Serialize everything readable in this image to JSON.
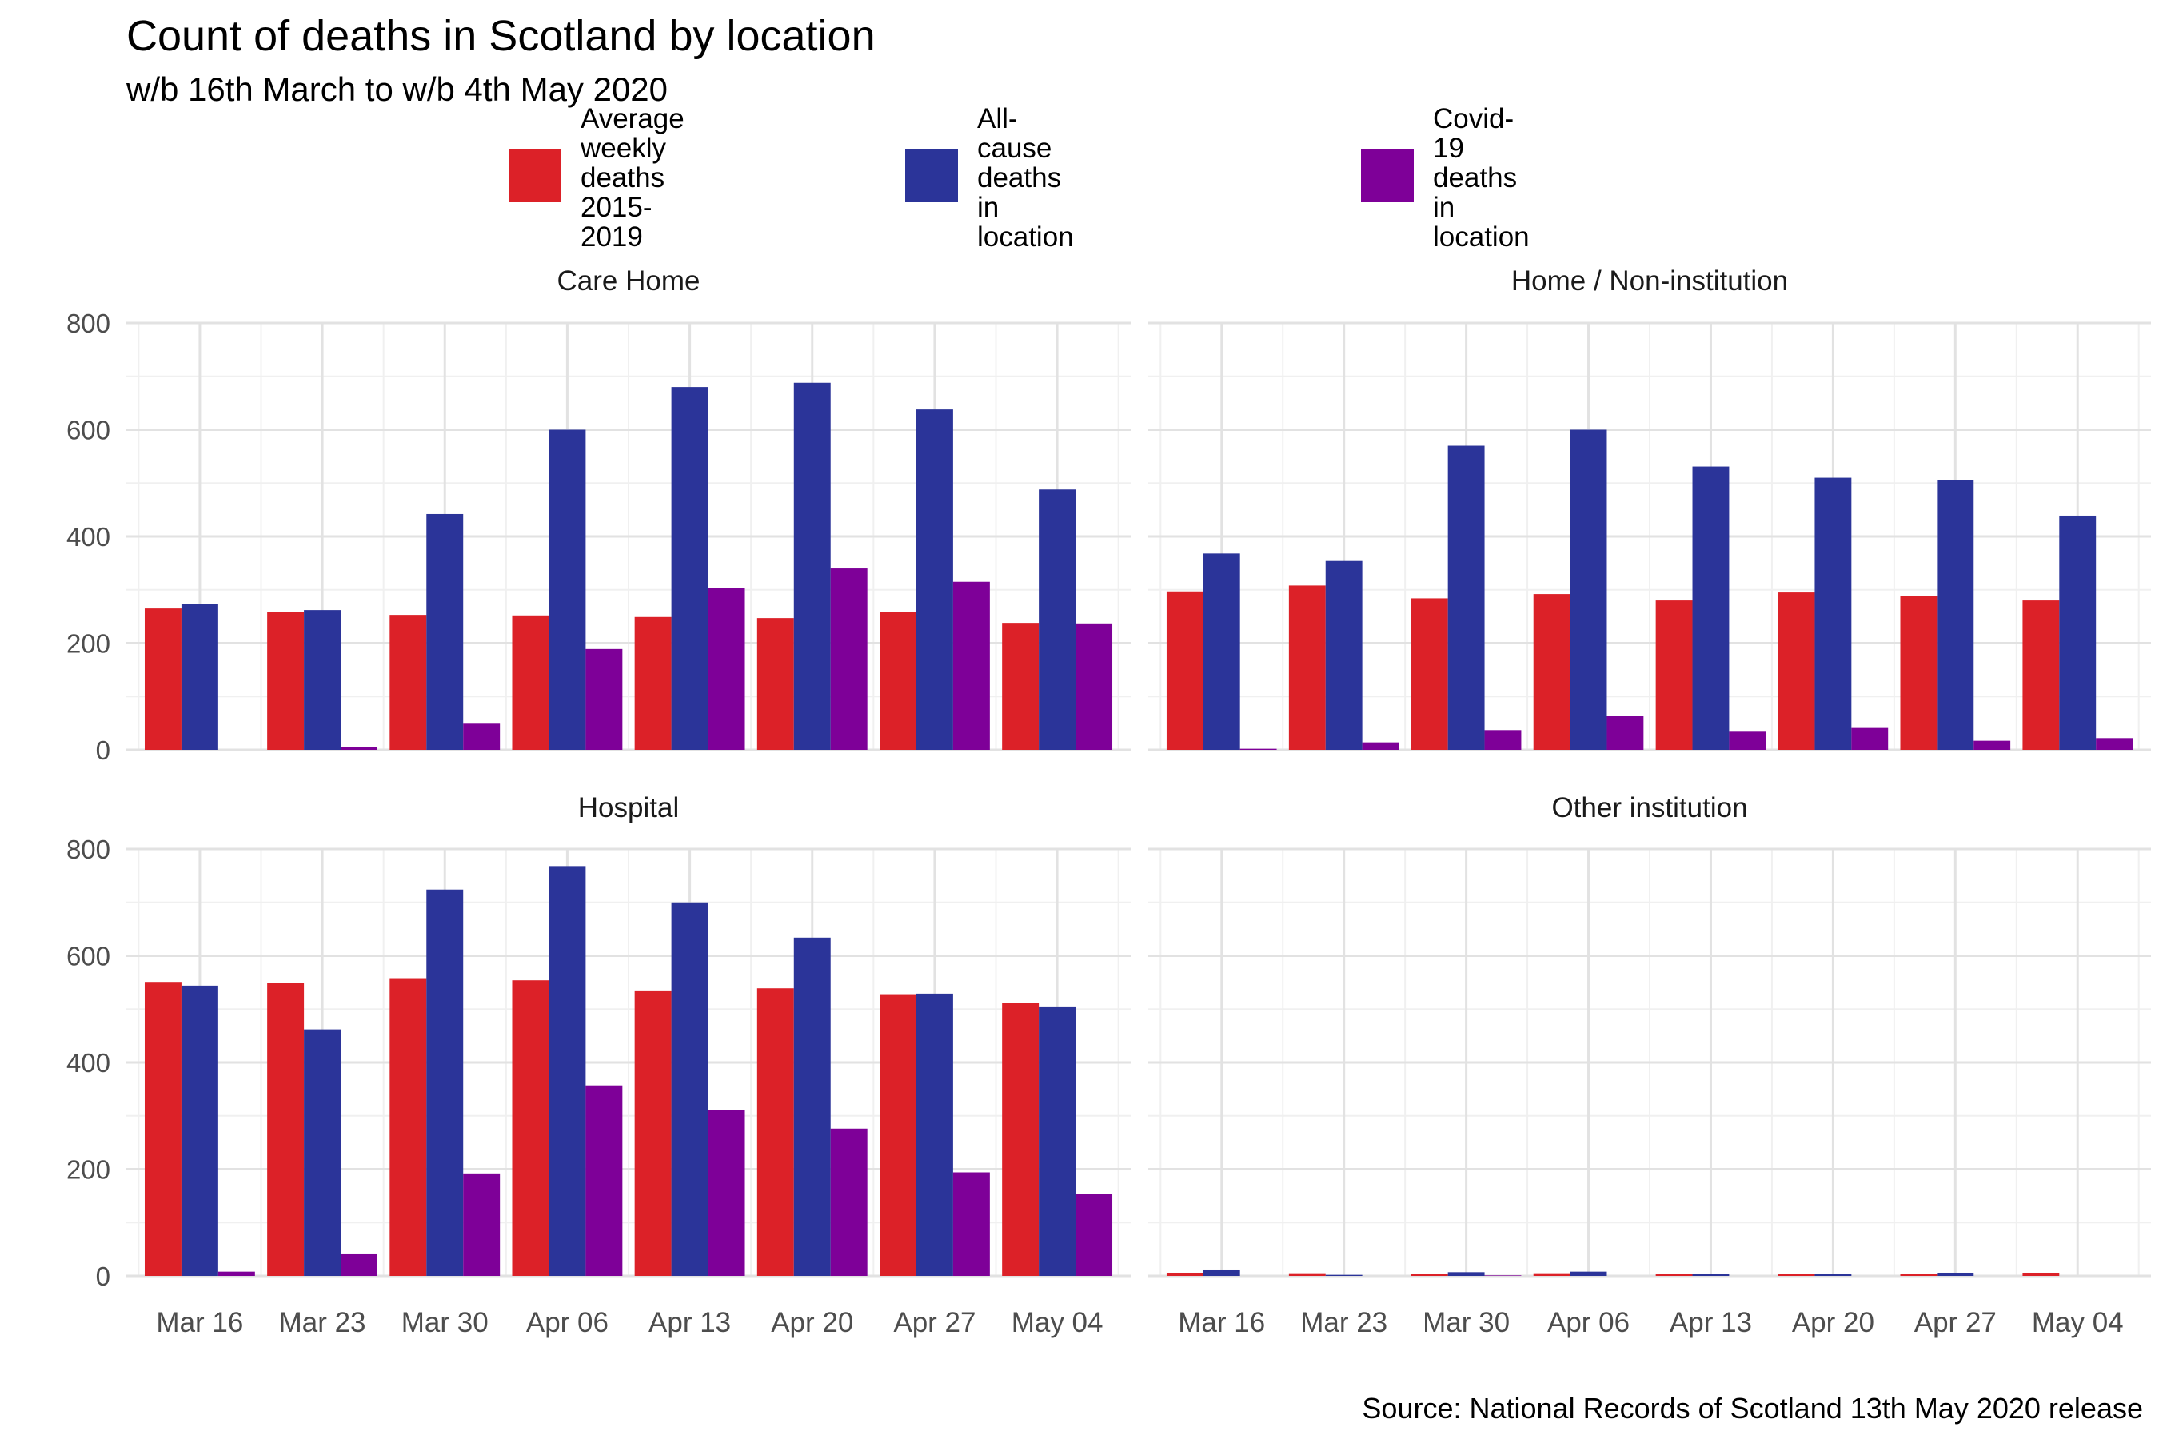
{
  "title": "Count of deaths in Scotland by location",
  "subtitle": "w/b 16th March to w/b 4th May 2020",
  "caption": "Source: National Records of Scotland 13th May 2020 release",
  "legend": [
    {
      "label": "Average weekly deaths\n2015-2019",
      "color": "#DC2128"
    },
    {
      "label": "All-cause deaths in location",
      "color": "#2B3499"
    },
    {
      "label": "Covid-19 deaths in location",
      "color": "#7E0098"
    }
  ],
  "chart_data": {
    "type": "bar",
    "facets": [
      "Care Home",
      "Home / Non-institution",
      "Hospital",
      "Other institution"
    ],
    "categories": [
      "Mar 16",
      "Mar 23",
      "Mar 30",
      "Apr 06",
      "Apr 13",
      "Apr 20",
      "Apr 27",
      "May 04"
    ],
    "ylim": [
      0,
      800
    ],
    "yticks": [
      0,
      200,
      400,
      600,
      800
    ],
    "grid": true,
    "legend_position": "top",
    "panels": [
      {
        "name": "Care Home",
        "series": [
          {
            "name": "Average weekly deaths 2015-2019",
            "values": [
              265,
              258,
              253,
              252,
              249,
              247,
              258,
              238
            ]
          },
          {
            "name": "All-cause deaths in location",
            "values": [
              274,
              262,
              442,
              600,
              680,
              688,
              638,
              488
            ]
          },
          {
            "name": "Covid-19 deaths in location",
            "values": [
              0,
              5,
              49,
              189,
              304,
              340,
              315,
              237
            ]
          }
        ]
      },
      {
        "name": "Home / Non-institution",
        "series": [
          {
            "name": "Average weekly deaths 2015-2019",
            "values": [
              297,
              308,
              284,
              292,
              280,
              295,
              288,
              280
            ]
          },
          {
            "name": "All-cause deaths in location",
            "values": [
              368,
              354,
              570,
              600,
              531,
              510,
              505,
              439
            ]
          },
          {
            "name": "Covid-19 deaths in location",
            "values": [
              2,
              14,
              37,
              63,
              34,
              41,
              17,
              22
            ]
          }
        ]
      },
      {
        "name": "Hospital",
        "series": [
          {
            "name": "Average weekly deaths 2015-2019",
            "values": [
              551,
              549,
              558,
              554,
              535,
              539,
              528,
              511
            ]
          },
          {
            "name": "All-cause deaths in location",
            "values": [
              544,
              462,
              724,
              768,
              700,
              634,
              529,
              505
            ]
          },
          {
            "name": "Covid-19 deaths in location",
            "values": [
              8,
              42,
              192,
              357,
              311,
              276,
              194,
              153
            ]
          }
        ]
      },
      {
        "name": "Other institution",
        "series": [
          {
            "name": "Average weekly deaths 2015-2019",
            "values": [
              6,
              5,
              4,
              5,
              4,
              4,
              4,
              6
            ]
          },
          {
            "name": "All-cause deaths in location",
            "values": [
              12,
              2,
              7,
              8,
              3,
              3,
              6,
              0
            ]
          },
          {
            "name": "Covid-19 deaths in location",
            "values": [
              0,
              0,
              1,
              0,
              0,
              0,
              0,
              0
            ]
          }
        ]
      }
    ]
  }
}
